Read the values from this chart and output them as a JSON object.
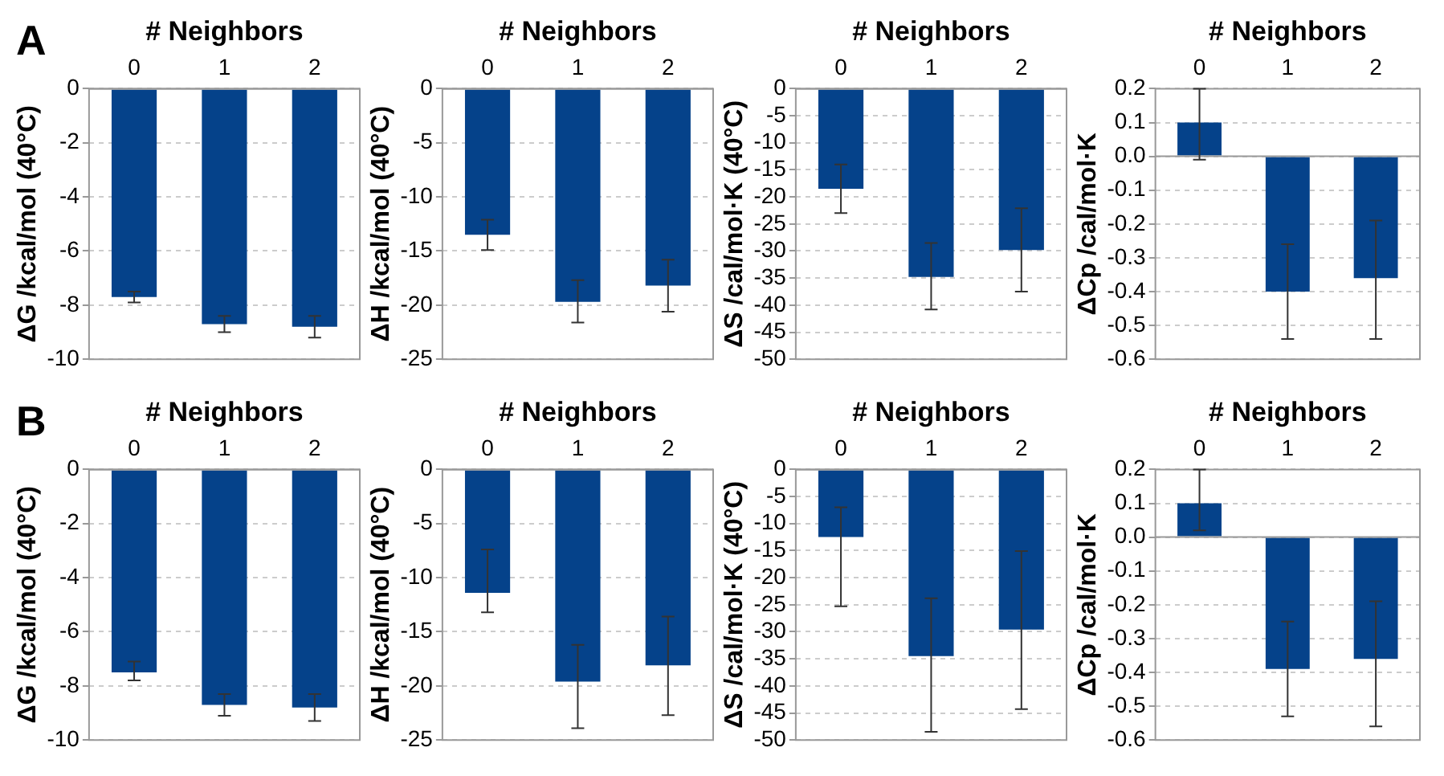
{
  "chart_data": [
    {
      "type": "bar",
      "annotations": [
        "A"
      ],
      "xlabel": "# Neighbors",
      "ylabel": "ΔG /kcal/mol (40°C)",
      "categories": [
        "0",
        "1",
        "2"
      ],
      "values": [
        -7.7,
        -8.7,
        -8.8
      ],
      "errors": [
        [
          -7.9,
          -7.5
        ],
        [
          -9.0,
          -8.4
        ],
        [
          -9.2,
          -8.4
        ]
      ],
      "color": "#05428a",
      "ylim": [
        -10,
        0
      ],
      "yticks": [
        0,
        -2,
        -4,
        -6,
        -8,
        -10
      ],
      "grid": "y"
    },
    {
      "type": "bar",
      "xlabel": "# Neighbors",
      "ylabel": "ΔH /kcal/mol (40°C)",
      "categories": [
        "0",
        "1",
        "2"
      ],
      "values": [
        -13.5,
        -19.7,
        -18.2
      ],
      "errors": [
        [
          -14.9,
          -12.1
        ],
        [
          -21.6,
          -17.7
        ],
        [
          -20.6,
          -15.8
        ]
      ],
      "color": "#05428a",
      "ylim": [
        -25,
        0
      ],
      "yticks": [
        0,
        -5,
        -10,
        -15,
        -20,
        -25
      ],
      "grid": "y"
    },
    {
      "type": "bar",
      "xlabel": "# Neighbors",
      "ylabel": "ΔS /cal/mol·K (40°C)",
      "categories": [
        "0",
        "1",
        "2"
      ],
      "values": [
        -18.5,
        -34.8,
        -29.8
      ],
      "errors": [
        [
          -23,
          -14
        ],
        [
          -40.8,
          -28.5
        ],
        [
          -37.5,
          -22.1
        ]
      ],
      "color": "#05428a",
      "ylim": [
        -50,
        0
      ],
      "yticks": [
        0,
        -5,
        -10,
        -15,
        -20,
        -25,
        -30,
        -35,
        -40,
        -45,
        -50
      ],
      "grid": "y"
    },
    {
      "type": "bar",
      "xlabel": "# Neighbors",
      "ylabel": "ΔCp /cal/mol·K",
      "categories": [
        "0",
        "1",
        "2"
      ],
      "values": [
        0.1,
        -0.4,
        -0.36
      ],
      "errors": [
        [
          -0.01,
          0.2
        ],
        [
          -0.54,
          -0.26
        ],
        [
          -0.54,
          -0.19
        ]
      ],
      "color": "#05428a",
      "ylim": [
        -0.6,
        0.2
      ],
      "yticks": [
        0.2,
        0.1,
        {
          "value": 0,
          "label": "0.0"
        },
        -0.1,
        -0.2,
        -0.3,
        -0.4,
        -0.5,
        -0.6
      ],
      "grid": "y"
    },
    {
      "type": "bar",
      "annotations": [
        "B"
      ],
      "xlabel": "# Neighbors",
      "ylabel": "ΔG /kcal/mol (40°C)",
      "categories": [
        "0",
        "1",
        "2"
      ],
      "values": [
        -7.5,
        -8.7,
        -8.8
      ],
      "errors": [
        [
          -7.8,
          -7.1
        ],
        [
          -9.1,
          -8.3
        ],
        [
          -9.3,
          -8.3
        ]
      ],
      "color": "#05428a",
      "ylim": [
        -10,
        0
      ],
      "yticks": [
        0,
        -2,
        -4,
        -6,
        -8,
        -10
      ],
      "grid": "y"
    },
    {
      "type": "bar",
      "xlabel": "# Neighbors",
      "ylabel": "ΔH /kcal/mol (40°C)",
      "categories": [
        "0",
        "1",
        "2"
      ],
      "values": [
        -11.4,
        -19.6,
        -18.1
      ],
      "errors": [
        [
          -13.2,
          -7.4
        ],
        [
          -23.9,
          -16.2
        ],
        [
          -22.7,
          -13.6
        ]
      ],
      "color": "#05428a",
      "ylim": [
        -25,
        0
      ],
      "yticks": [
        0,
        -5,
        -10,
        -15,
        -20,
        -25
      ],
      "grid": "y"
    },
    {
      "type": "bar",
      "xlabel": "# Neighbors",
      "ylabel": "ΔS /cal/mol·K (40°C)",
      "categories": [
        "0",
        "1",
        "2"
      ],
      "values": [
        -12.5,
        -34.5,
        -29.6
      ],
      "errors": [
        [
          -25.3,
          -7
        ],
        [
          -48.5,
          -23.8
        ],
        [
          -44.3,
          -15.1
        ]
      ],
      "color": "#05428a",
      "ylim": [
        -50,
        0
      ],
      "yticks": [
        0,
        -5,
        -10,
        -15,
        -20,
        -25,
        -30,
        -35,
        -40,
        -45,
        -50
      ],
      "grid": "y"
    },
    {
      "type": "bar",
      "xlabel": "# Neighbors",
      "ylabel": "ΔCp /cal/mol·K",
      "categories": [
        "0",
        "1",
        "2"
      ],
      "values": [
        0.1,
        -0.39,
        -0.36
      ],
      "errors": [
        [
          0.02,
          0.2
        ],
        [
          -0.53,
          -0.25
        ],
        [
          -0.56,
          -0.19
        ]
      ],
      "color": "#05428a",
      "ylim": [
        -0.6,
        0.2
      ],
      "yticks": [
        0.2,
        0.1,
        {
          "value": 0,
          "label": "0.0"
        },
        -0.1,
        -0.2,
        -0.3,
        -0.4,
        -0.5,
        -0.6
      ],
      "grid": "y"
    }
  ]
}
